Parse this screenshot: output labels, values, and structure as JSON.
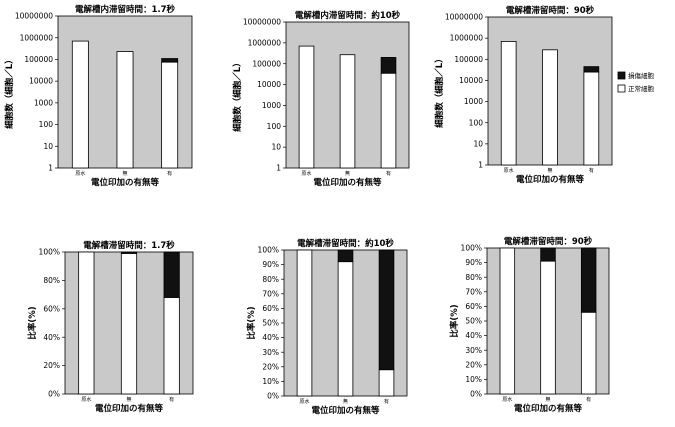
{
  "chart_data": [
    {
      "type": "bar",
      "stacked": true,
      "yscale": "log",
      "title": "電解槽内滞留時間：1.7秒",
      "xlabel": "電位印加の有無等",
      "ylabel": "細胞数（細胞／L）",
      "categories": [
        "原水",
        "無",
        "有"
      ],
      "ylim": [
        1,
        10000000
      ],
      "yticks": [
        "1",
        "10",
        "100",
        "1000",
        "10000",
        "100000",
        "1000000",
        "10000000"
      ],
      "grid": false,
      "legend": "none",
      "series": [
        {
          "name": "正常細胞",
          "values": [
            700000,
            230000,
            75000
          ]
        },
        {
          "name": "損傷細胞",
          "values": [
            0,
            0,
            35000
          ]
        }
      ]
    },
    {
      "type": "bar",
      "stacked": true,
      "yscale": "log",
      "title": "電解槽内滞留時間：約10秒",
      "xlabel": "電位印加の有無等",
      "ylabel": "細胞数（細胞／L）",
      "categories": [
        "原水",
        "無",
        "有"
      ],
      "ylim": [
        1,
        10000000
      ],
      "yticks": [
        "1",
        "10",
        "100",
        "1000",
        "10000",
        "100000",
        "1000000",
        "10000000"
      ],
      "grid": false,
      "legend": "none",
      "series": [
        {
          "name": "正常細胞",
          "values": [
            700000,
            270000,
            35000
          ]
        },
        {
          "name": "損傷細胞",
          "values": [
            0,
            0,
            165000
          ]
        }
      ]
    },
    {
      "type": "bar",
      "stacked": true,
      "yscale": "log",
      "title": "電解槽滞留時間：90秒",
      "xlabel": "電位印加の有無等",
      "ylabel": "細胞数（細胞／L）",
      "categories": [
        "原水",
        "無",
        "有"
      ],
      "ylim": [
        1,
        10000000
      ],
      "yticks": [
        "1",
        "10",
        "100",
        "1000",
        "10000",
        "100000",
        "1000000",
        "10000000"
      ],
      "grid": false,
      "legend": "right",
      "series": [
        {
          "name": "正常細胞",
          "values": [
            700000,
            280000,
            25000
          ]
        },
        {
          "name": "損傷細胞",
          "values": [
            0,
            0,
            20000
          ]
        }
      ]
    },
    {
      "type": "bar",
      "stacked": true,
      "yscale": "linear",
      "title": "電解槽滞留時間：1.7秒",
      "xlabel": "電位印加の有無等",
      "ylabel": "比率(%)",
      "categories": [
        "原水",
        "無",
        "有"
      ],
      "ylim": [
        0,
        100
      ],
      "yticks": [
        "0%",
        "20%",
        "40%",
        "60%",
        "80%",
        "100%"
      ],
      "grid": false,
      "legend": "none",
      "series": [
        {
          "name": "正常細胞",
          "values": [
            100,
            99,
            68
          ]
        },
        {
          "name": "損傷細胞",
          "values": [
            0,
            1,
            32
          ]
        }
      ]
    },
    {
      "type": "bar",
      "stacked": true,
      "yscale": "linear",
      "title": "電解槽滞留時間：約10秒",
      "xlabel": "電位印加の有無等",
      "ylabel": "比率(%)",
      "categories": [
        "原水",
        "無",
        "有"
      ],
      "ylim": [
        0,
        100
      ],
      "yticks": [
        "0%",
        "10%",
        "20%",
        "30%",
        "40%",
        "50%",
        "60%",
        "70%",
        "80%",
        "90%",
        "100%"
      ],
      "grid": false,
      "legend": "none",
      "series": [
        {
          "name": "正常細胞",
          "values": [
            100,
            92,
            18
          ]
        },
        {
          "name": "損傷細胞",
          "values": [
            0,
            8,
            82
          ]
        }
      ]
    },
    {
      "type": "bar",
      "stacked": true,
      "yscale": "linear",
      "title": "電解槽滞留時間：90秒",
      "xlabel": "電位印加の有無等",
      "ylabel": "比率(%)",
      "categories": [
        "原水",
        "無",
        "有"
      ],
      "ylim": [
        0,
        100
      ],
      "yticks": [
        "0%",
        "10%",
        "20%",
        "30%",
        "40%",
        "50%",
        "60%",
        "70%",
        "80%",
        "90%",
        "100%"
      ],
      "grid": false,
      "legend": "none",
      "series": [
        {
          "name": "正常細胞",
          "values": [
            100,
            91,
            56
          ]
        },
        {
          "name": "損傷細胞",
          "values": [
            0,
            9,
            44
          ]
        }
      ]
    }
  ],
  "legend": {
    "items": [
      {
        "label": "損傷細胞",
        "color": "#111111"
      },
      {
        "label": "正常細胞",
        "color": "#ffffff"
      }
    ]
  },
  "colors": {
    "plot_bg": "#c9c9c9",
    "damaged": "#111111",
    "normal": "#ffffff"
  }
}
